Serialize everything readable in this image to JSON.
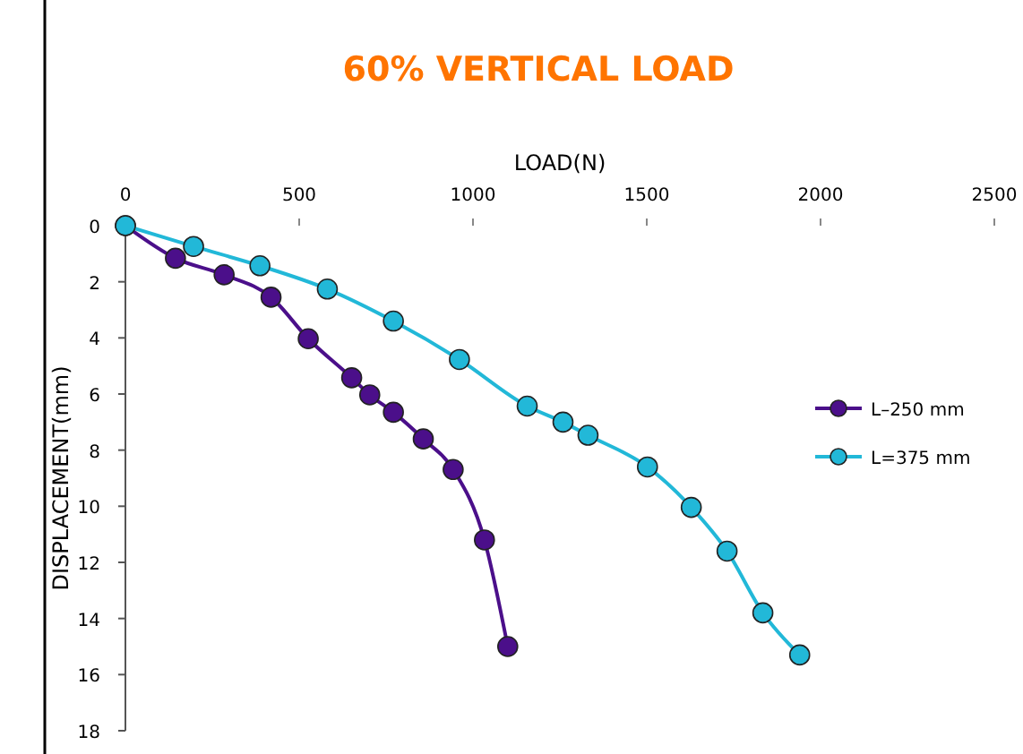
{
  "chart_data": {
    "type": "line",
    "title": "60% VERTICAL LOAD",
    "xlabel": "LOAD(N)",
    "ylabel": "DISPLACEMENT(mm)",
    "xlim": [
      0,
      2500
    ],
    "xticks": [
      0,
      500,
      1000,
      1500,
      2000,
      2500
    ],
    "ylim": [
      18,
      0
    ],
    "yticks": [
      0,
      2,
      4,
      6,
      8,
      10,
      12,
      14,
      16,
      18
    ],
    "grid": false,
    "legend": "right",
    "marker": "circle",
    "line_style": "solid",
    "series": [
      {
        "name": "L–250 mm",
        "color": "#4b0f8a",
        "x": [
          0,
          144,
          284,
          419,
          526,
          651,
          703,
          771,
          857,
          943,
          1033,
          1100
        ],
        "values": [
          0,
          1.16,
          1.75,
          2.55,
          4.03,
          5.42,
          6.03,
          6.65,
          7.6,
          8.69,
          11.2,
          15.0
        ]
      },
      {
        "name": "L=375 mm",
        "color": "#22b8d8",
        "x": [
          0,
          196,
          387,
          581,
          771,
          961,
          1156,
          1259,
          1331,
          1502,
          1628,
          1731,
          1834,
          1940
        ],
        "values": [
          0,
          0.74,
          1.43,
          2.26,
          3.4,
          4.77,
          6.43,
          7.0,
          7.47,
          8.6,
          10.04,
          11.6,
          13.8,
          15.3
        ]
      }
    ]
  }
}
